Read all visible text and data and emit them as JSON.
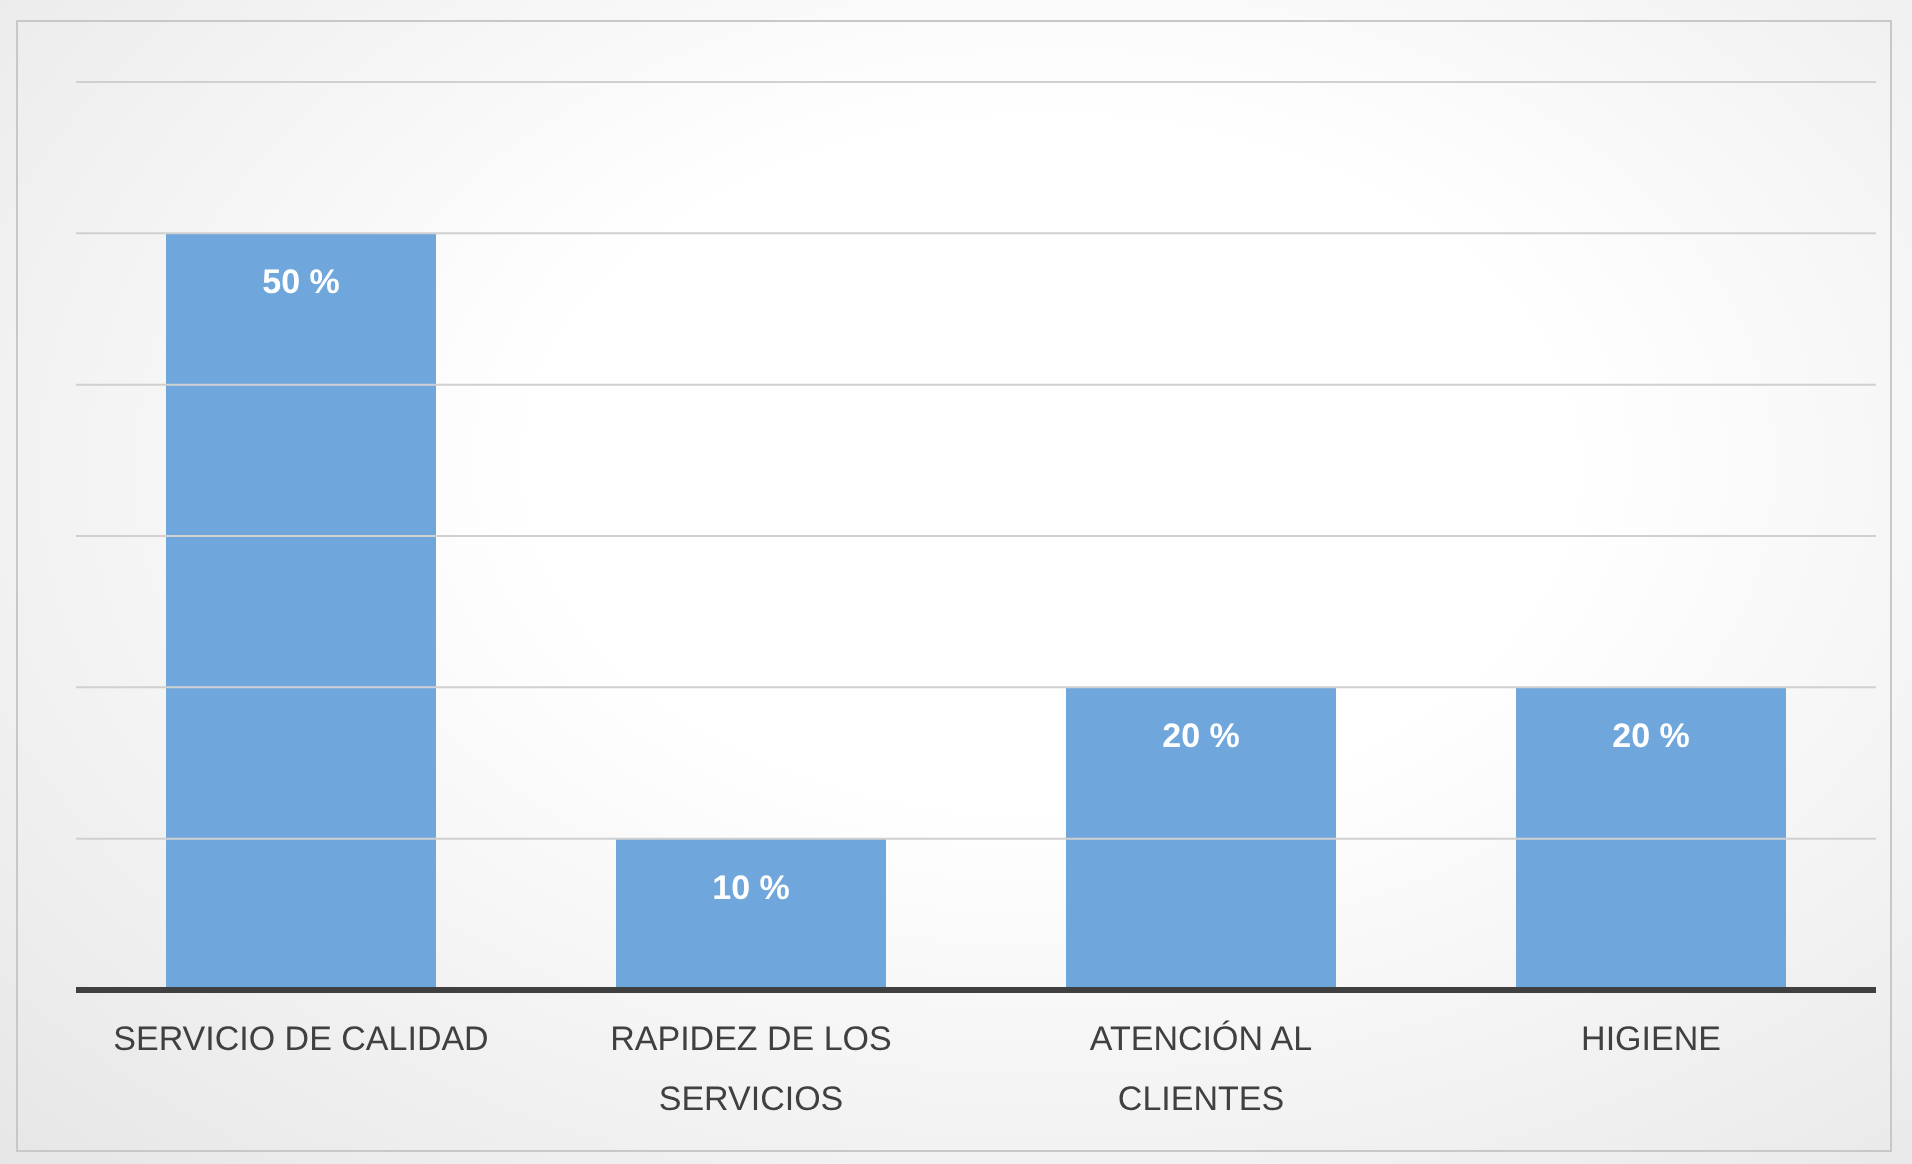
{
  "chart_data": {
    "type": "bar",
    "categories": [
      "SERVICIO DE CALIDAD",
      "RAPIDEZ DE LOS SERVICIOS",
      "ATENCIÓN AL CLIENTES",
      "HIGIENE"
    ],
    "values": [
      50,
      10,
      20,
      20
    ],
    "value_labels": [
      "50 %",
      "10 %",
      "20 %",
      "20 %"
    ],
    "color": "#6fa6dc",
    "ylim": [
      0,
      60
    ],
    "yticks": [
      {
        "value": 0,
        "label": null
      },
      {
        "value": 10,
        "label": null
      },
      {
        "value": 20,
        "label": null
      },
      {
        "value": 30,
        "label": null
      },
      {
        "value": 40,
        "label": null
      },
      {
        "value": 50,
        "label": null
      },
      {
        "value": 60,
        "label": null
      }
    ],
    "grid": "y",
    "tick_labels": "x"
  }
}
